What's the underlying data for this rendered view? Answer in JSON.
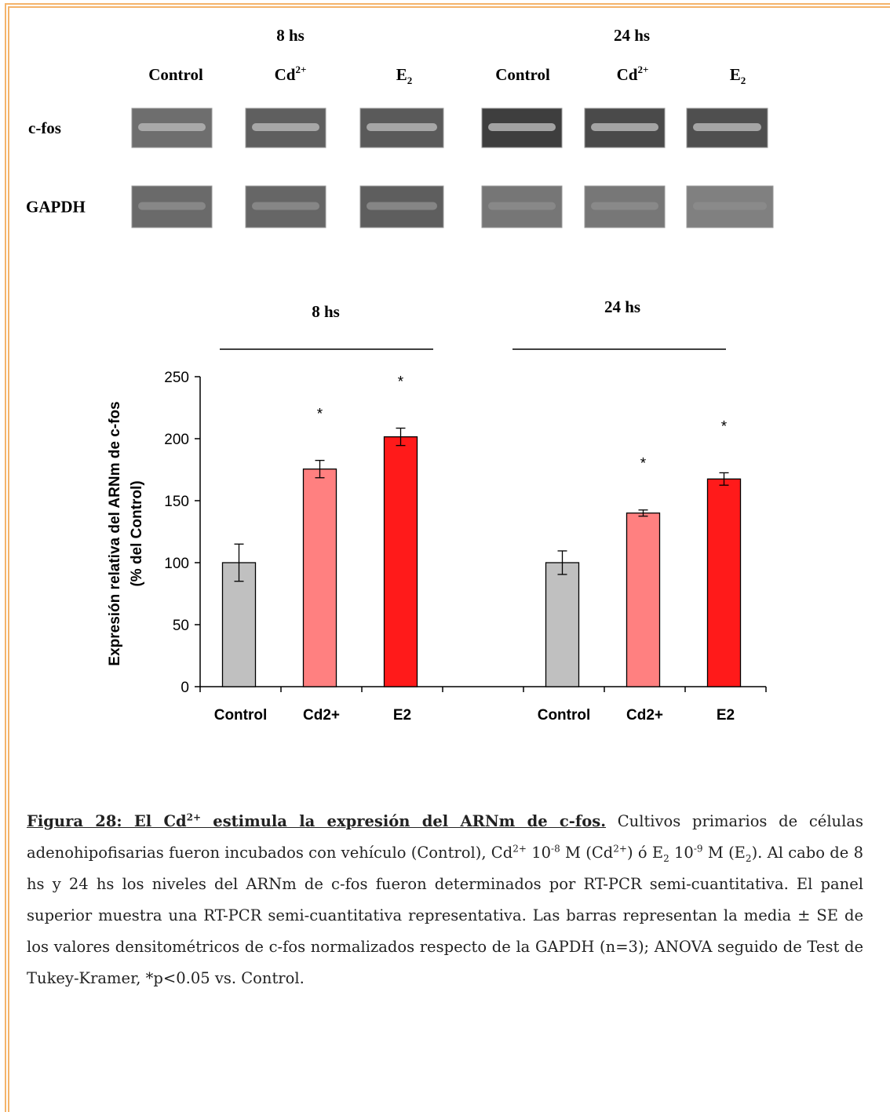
{
  "gel": {
    "time_labels": [
      "8 hs",
      "24 hs"
    ],
    "lanes": [
      {
        "base": "Control"
      },
      {
        "base": "Cd",
        "sup": "2+"
      },
      {
        "base": "E",
        "sub": "2"
      },
      {
        "base": "Control"
      },
      {
        "base": "Cd",
        "sup": "2+"
      },
      {
        "base": "E",
        "sub": "2"
      }
    ],
    "rows": [
      "c-fos",
      "GAPDH"
    ]
  },
  "chart_data": {
    "type": "bar",
    "group_labels": [
      "8 hs",
      "24 hs"
    ],
    "y_label": [
      "Expresión relativa del ARNm de c-fos",
      "(% del Control)"
    ],
    "categories": [
      "Control",
      "Cd2+",
      "E2",
      null,
      "Control",
      "Cd2+",
      "E2"
    ],
    "values": [
      100,
      175.5,
      201.5,
      null,
      100,
      140,
      167.5
    ],
    "errors": [
      15,
      7,
      7,
      null,
      9.5,
      2.5,
      5
    ],
    "colors": [
      "#c0c0c0",
      "#ff8080",
      "#ff1a1a",
      null,
      "#c0c0c0",
      "#ff8080",
      "#ff1a1a"
    ],
    "annotations": [
      null,
      "*",
      "*",
      null,
      null,
      "*",
      "*"
    ],
    "ylim": [
      0,
      250
    ],
    "yticks": [
      0,
      50,
      100,
      150,
      200,
      250
    ]
  },
  "caption": {
    "title": [
      {
        "text": "Figura 28: El Cd"
      },
      {
        "text": "2+",
        "style": "sup"
      },
      {
        "text": " estimula la expresión del ARNm de c-fos."
      }
    ],
    "body": [
      {
        "text": " Cultivos primarios de células adenohipofisarias fueron incubados con vehículo (Control), Cd"
      },
      {
        "text": "2+",
        "style": "sup"
      },
      {
        "text": " 10"
      },
      {
        "text": "-8",
        "style": "sup"
      },
      {
        "text": " M (Cd"
      },
      {
        "text": "2+",
        "style": "sup"
      },
      {
        "text": ") ó E"
      },
      {
        "text": "2",
        "style": "sub"
      },
      {
        "text": " 10"
      },
      {
        "text": "-9",
        "style": "sup"
      },
      {
        "text": " M (E"
      },
      {
        "text": "2",
        "style": "sub"
      },
      {
        "text": "). Al cabo de 8 hs y 24 hs los niveles del ARNm de c-fos fueron determinados por RT-PCR semi-cuantitativa. El panel superior muestra una RT-PCR semi-cuantitativa representativa. Las barras representan la media ± SE de los valores densitométricos de c-fos normalizados respecto de la GAPDH (n=3); ANOVA seguido de Test de Tukey-Kramer, *p<0.05 vs. Control."
      }
    ]
  }
}
